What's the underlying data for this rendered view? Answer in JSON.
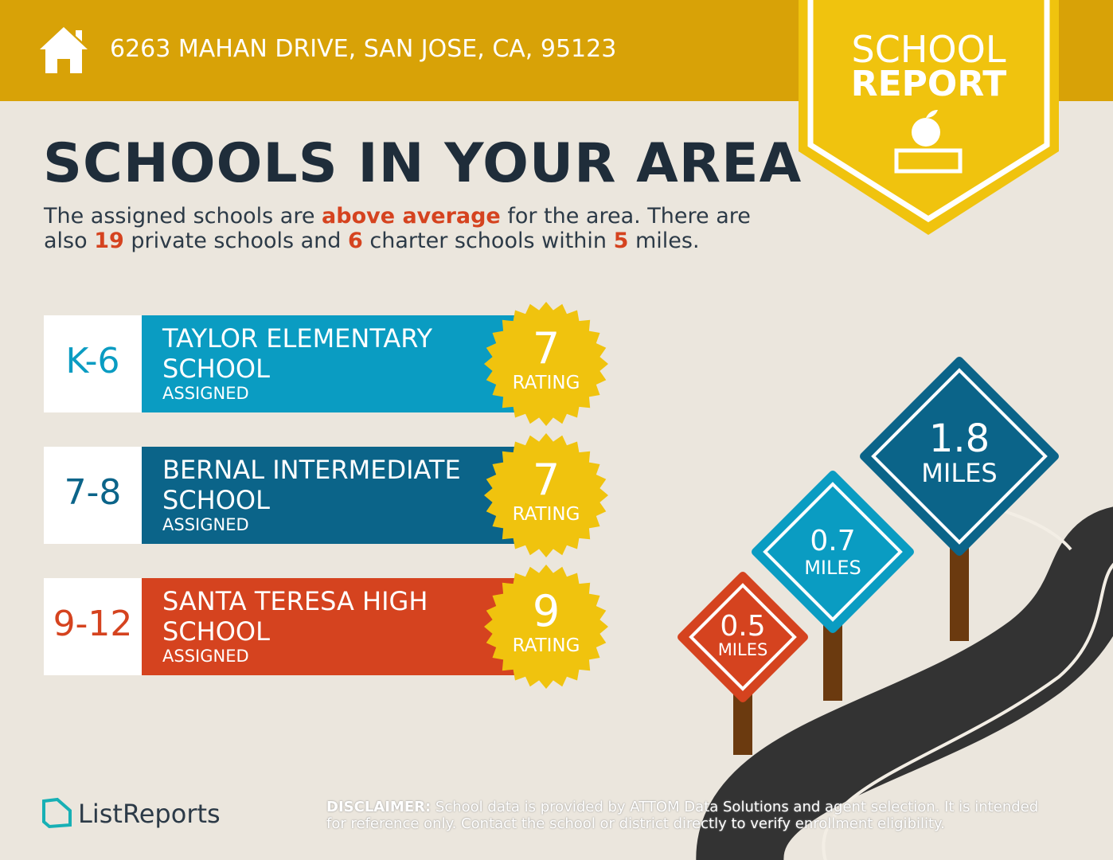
{
  "header": {
    "address": "6263 MAHAN DRIVE, SAN JOSE, CA, 95123",
    "badge_top": "SCHOOL",
    "badge_bottom": "REPORT"
  },
  "title": "SCHOOLS IN YOUR AREA",
  "summary": [
    {
      "text": "The assigned schools are "
    },
    {
      "text": "above average",
      "em": true
    },
    {
      "text": " for the area. There are also "
    },
    {
      "text": "19",
      "em": true
    },
    {
      "text": " private schools and "
    },
    {
      "text": "6",
      "em": true
    },
    {
      "text": " charter schools within "
    },
    {
      "text": "5",
      "em": true
    },
    {
      "text": " miles."
    }
  ],
  "schools": [
    {
      "grades": "K-6",
      "name": "TAYLOR ELEMENTARY SCHOOL",
      "status": "ASSIGNED",
      "rating": 7,
      "rating_label": "RATING",
      "color": "#0a9cc2"
    },
    {
      "grades": "7-8",
      "name": "BERNAL INTERMEDIATE SCHOOL",
      "status": "ASSIGNED",
      "rating": 7,
      "rating_label": "RATING",
      "color": "#0b6489"
    },
    {
      "grades": "9-12",
      "name": "SANTA TERESA HIGH SCHOOL",
      "status": "ASSIGNED",
      "rating": 9,
      "rating_label": "RATING",
      "color": "#d5431f"
    }
  ],
  "signs": [
    {
      "distance": 0.5,
      "unit": "MILES",
      "color": "#d5431f"
    },
    {
      "distance": 0.7,
      "unit": "MILES",
      "color": "#0a9cc2"
    },
    {
      "distance": 1.8,
      "unit": "MILES",
      "color": "#0b6489"
    }
  ],
  "footer": {
    "brand": "ListReports",
    "disclaimer_label": "DISCLAIMER:",
    "disclaimer": " School data is provided by ATTOM Data Solutions and agent selection. It is intended for reference only. Contact the school or district directly to verify enrollment eligibility."
  }
}
